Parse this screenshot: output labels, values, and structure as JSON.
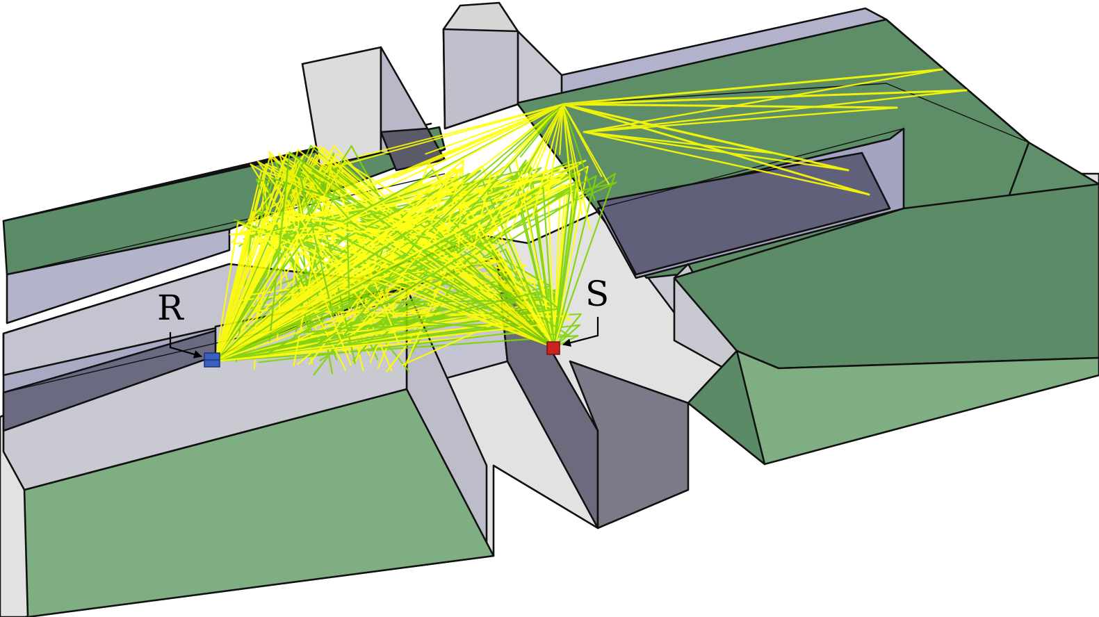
{
  "labels": {
    "receiver": "R",
    "source": "S"
  },
  "colors": {
    "building_green": "#7fae82",
    "building_green_dark": "#5a8866",
    "wall_gray": "#c9c9d1",
    "wall_lavender": "#b3b3ca",
    "canyon_dark": "#5f5f70",
    "ground": "#e2e2e2",
    "ray_yellow": "#ffff00",
    "ray_green": "#7fd400",
    "receiver_blue": "#3b5fbf",
    "source_red": "#cc2222"
  }
}
